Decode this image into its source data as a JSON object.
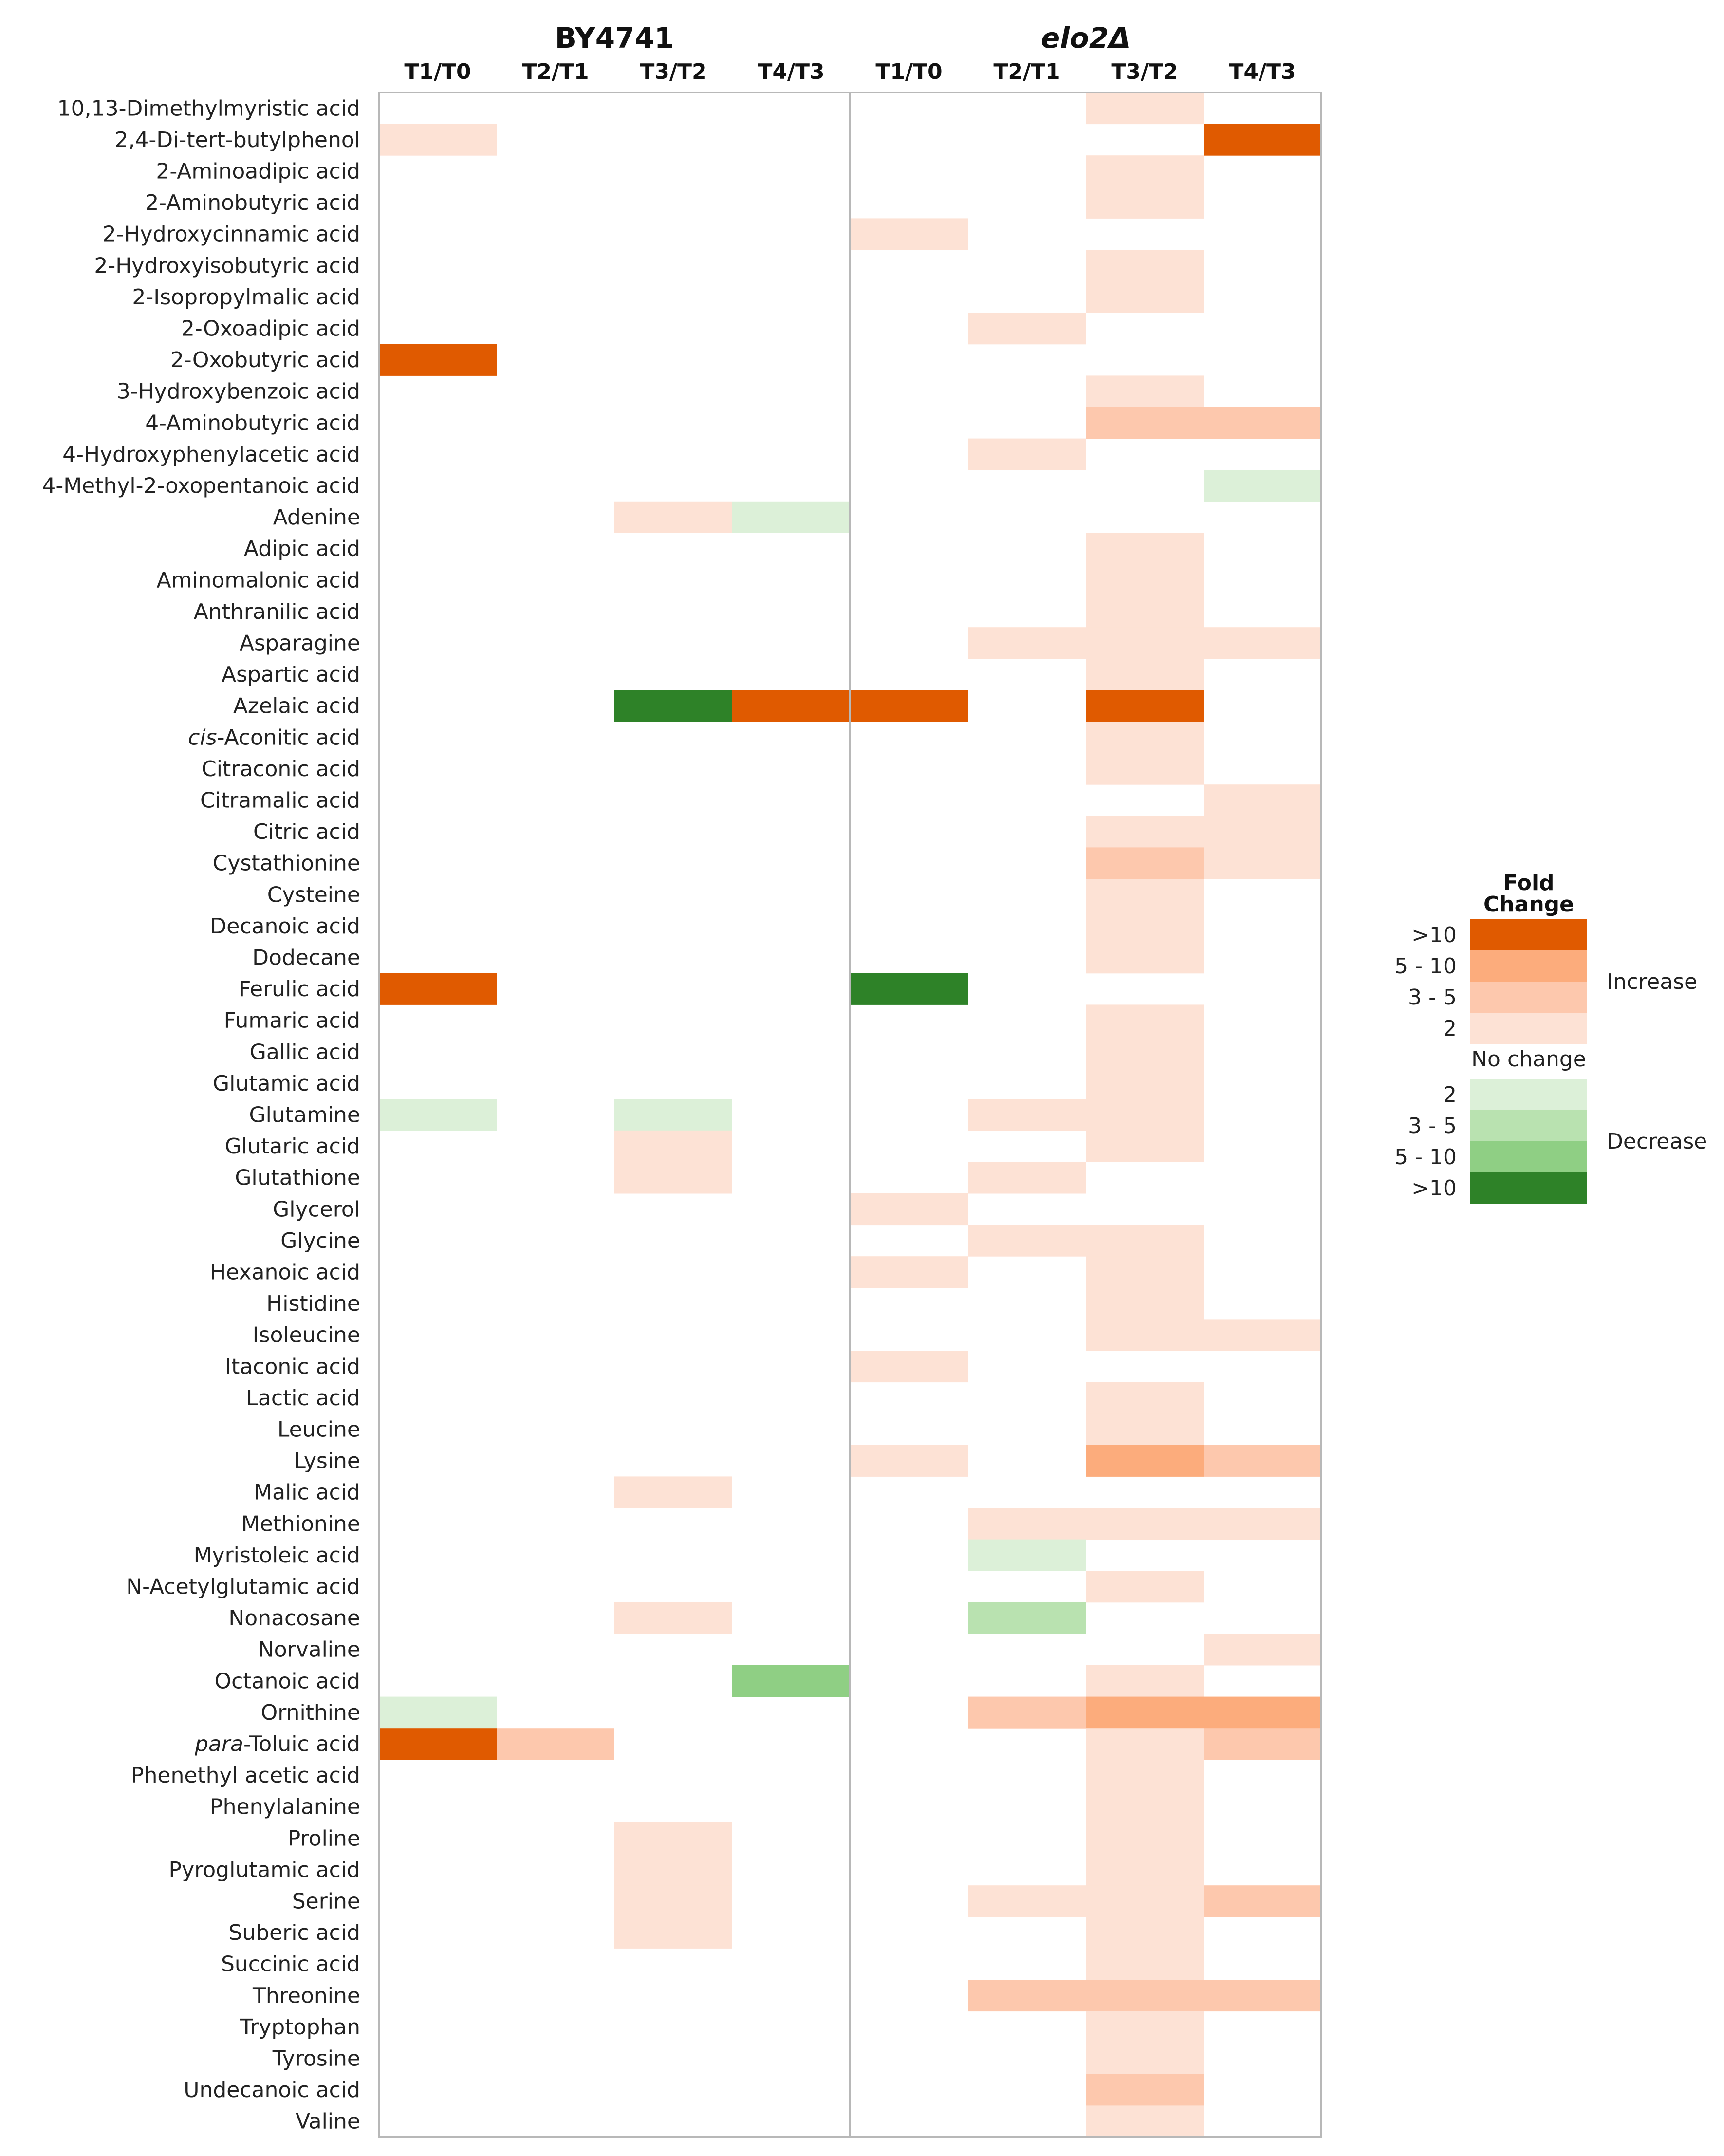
{
  "chart_data": {
    "type": "heatmap",
    "groups": [
      {
        "name": "BY4741",
        "italic": false
      },
      {
        "name": "elo2Δ",
        "italic": true
      }
    ],
    "columns": [
      "T1/T0",
      "T2/T1",
      "T3/T2",
      "T4/T3",
      "T1/T0",
      "T2/T1",
      "T3/T2",
      "T4/T3"
    ],
    "rows": [
      {
        "label": "10,13-Dimethylmyristic acid",
        "values": [
          0,
          0,
          0,
          0,
          0,
          0,
          1,
          0
        ]
      },
      {
        "label": "2,4-Di-tert-butylphenol",
        "values": [
          1,
          0,
          0,
          0,
          0,
          0,
          0,
          4
        ]
      },
      {
        "label": "2-Aminoadipic acid",
        "values": [
          0,
          0,
          0,
          0,
          0,
          0,
          1,
          0
        ]
      },
      {
        "label": "2-Aminobutyric acid",
        "values": [
          0,
          0,
          0,
          0,
          0,
          0,
          1,
          0
        ]
      },
      {
        "label": "2-Hydroxycinnamic acid",
        "values": [
          0,
          0,
          0,
          0,
          1,
          0,
          0,
          0
        ]
      },
      {
        "label": "2-Hydroxyisobutyric acid",
        "values": [
          0,
          0,
          0,
          0,
          0,
          0,
          1,
          0
        ]
      },
      {
        "label": "2-Isopropylmalic acid",
        "values": [
          0,
          0,
          0,
          0,
          0,
          0,
          1,
          0
        ]
      },
      {
        "label": "2-Oxoadipic acid",
        "values": [
          0,
          0,
          0,
          0,
          0,
          1,
          0,
          0
        ]
      },
      {
        "label": "2-Oxobutyric acid",
        "values": [
          4,
          0,
          0,
          0,
          0,
          0,
          0,
          0
        ]
      },
      {
        "label": "3-Hydroxybenzoic acid",
        "values": [
          0,
          0,
          0,
          0,
          0,
          0,
          1,
          0
        ]
      },
      {
        "label": "4-Aminobutyric acid",
        "values": [
          0,
          0,
          0,
          0,
          0,
          0,
          2,
          2
        ]
      },
      {
        "label": "4-Hydroxyphenylacetic acid",
        "values": [
          0,
          0,
          0,
          0,
          0,
          1,
          0,
          0
        ]
      },
      {
        "label": "4-Methyl-2-oxopentanoic acid",
        "values": [
          0,
          0,
          0,
          0,
          0,
          0,
          0,
          -1
        ]
      },
      {
        "label": "Adenine",
        "values": [
          0,
          0,
          1,
          -1,
          0,
          0,
          0,
          0
        ]
      },
      {
        "label": "Adipic acid",
        "values": [
          0,
          0,
          0,
          0,
          0,
          0,
          1,
          0
        ]
      },
      {
        "label": "Aminomalonic acid",
        "values": [
          0,
          0,
          0,
          0,
          0,
          0,
          1,
          0
        ]
      },
      {
        "label": "Anthranilic acid",
        "values": [
          0,
          0,
          0,
          0,
          0,
          0,
          1,
          0
        ]
      },
      {
        "label": "Asparagine",
        "values": [
          0,
          0,
          0,
          0,
          0,
          1,
          1,
          1
        ]
      },
      {
        "label": "Aspartic acid",
        "values": [
          0,
          0,
          0,
          0,
          0,
          0,
          1,
          0
        ]
      },
      {
        "label": "Azelaic acid",
        "values": [
          0,
          0,
          -4,
          4,
          4,
          0,
          4,
          0
        ]
      },
      {
        "label": "cis-Aconitic acid",
        "italic_prefix": "cis",
        "values": [
          0,
          0,
          0,
          0,
          0,
          0,
          1,
          0
        ]
      },
      {
        "label": "Citraconic acid",
        "values": [
          0,
          0,
          0,
          0,
          0,
          0,
          1,
          0
        ]
      },
      {
        "label": "Citramalic acid",
        "values": [
          0,
          0,
          0,
          0,
          0,
          0,
          0,
          1
        ]
      },
      {
        "label": "Citric acid",
        "values": [
          0,
          0,
          0,
          0,
          0,
          0,
          1,
          1
        ]
      },
      {
        "label": "Cystathionine",
        "values": [
          0,
          0,
          0,
          0,
          0,
          0,
          2,
          1
        ]
      },
      {
        "label": "Cysteine",
        "values": [
          0,
          0,
          0,
          0,
          0,
          0,
          1,
          0
        ]
      },
      {
        "label": "Decanoic acid",
        "values": [
          0,
          0,
          0,
          0,
          0,
          0,
          1,
          0
        ]
      },
      {
        "label": "Dodecane",
        "values": [
          0,
          0,
          0,
          0,
          0,
          0,
          1,
          0
        ]
      },
      {
        "label": "Ferulic acid",
        "values": [
          4,
          0,
          0,
          0,
          -4,
          0,
          0,
          0
        ]
      },
      {
        "label": "Fumaric acid",
        "values": [
          0,
          0,
          0,
          0,
          0,
          0,
          1,
          0
        ]
      },
      {
        "label": "Gallic acid",
        "values": [
          0,
          0,
          0,
          0,
          0,
          0,
          1,
          0
        ]
      },
      {
        "label": "Glutamic acid",
        "values": [
          0,
          0,
          0,
          0,
          0,
          0,
          1,
          0
        ]
      },
      {
        "label": "Glutamine",
        "values": [
          -1,
          0,
          -1,
          0,
          0,
          1,
          1,
          0
        ]
      },
      {
        "label": "Glutaric acid",
        "values": [
          0,
          0,
          1,
          0,
          0,
          0,
          1,
          0
        ]
      },
      {
        "label": "Glutathione",
        "values": [
          0,
          0,
          1,
          0,
          0,
          1,
          0,
          0
        ]
      },
      {
        "label": "Glycerol",
        "values": [
          0,
          0,
          0,
          0,
          1,
          0,
          0,
          0
        ]
      },
      {
        "label": "Glycine",
        "values": [
          0,
          0,
          0,
          0,
          0,
          1,
          1,
          0
        ]
      },
      {
        "label": "Hexanoic acid",
        "values": [
          0,
          0,
          0,
          0,
          1,
          0,
          1,
          0
        ]
      },
      {
        "label": "Histidine",
        "values": [
          0,
          0,
          0,
          0,
          0,
          0,
          1,
          0
        ]
      },
      {
        "label": "Isoleucine",
        "values": [
          0,
          0,
          0,
          0,
          0,
          0,
          1,
          1
        ]
      },
      {
        "label": "Itaconic acid",
        "values": [
          0,
          0,
          0,
          0,
          1,
          0,
          0,
          0
        ]
      },
      {
        "label": "Lactic acid",
        "values": [
          0,
          0,
          0,
          0,
          0,
          0,
          1,
          0
        ]
      },
      {
        "label": "Leucine",
        "values": [
          0,
          0,
          0,
          0,
          0,
          0,
          1,
          0
        ]
      },
      {
        "label": "Lysine",
        "values": [
          0,
          0,
          0,
          0,
          1,
          0,
          3,
          2
        ]
      },
      {
        "label": "Malic acid",
        "values": [
          0,
          0,
          1,
          0,
          0,
          0,
          0,
          0
        ]
      },
      {
        "label": "Methionine",
        "values": [
          0,
          0,
          0,
          0,
          0,
          1,
          1,
          1
        ]
      },
      {
        "label": "Myristoleic acid",
        "values": [
          0,
          0,
          0,
          0,
          0,
          -1,
          0,
          0
        ]
      },
      {
        "label": "N-Acetylglutamic acid",
        "values": [
          0,
          0,
          0,
          0,
          0,
          0,
          1,
          0
        ]
      },
      {
        "label": "Nonacosane",
        "values": [
          0,
          0,
          1,
          0,
          0,
          -2,
          0,
          0
        ]
      },
      {
        "label": "Norvaline",
        "values": [
          0,
          0,
          0,
          0,
          0,
          0,
          0,
          1
        ]
      },
      {
        "label": "Octanoic acid",
        "values": [
          0,
          0,
          0,
          -3,
          0,
          0,
          1,
          0
        ]
      },
      {
        "label": "Ornithine",
        "values": [
          -1,
          0,
          0,
          0,
          0,
          2,
          3,
          3
        ]
      },
      {
        "label": "para-Toluic acid",
        "italic_prefix": "para",
        "values": [
          4,
          2,
          0,
          0,
          0,
          0,
          1,
          2
        ]
      },
      {
        "label": "Phenethyl acetic acid",
        "values": [
          0,
          0,
          0,
          0,
          0,
          0,
          1,
          0
        ]
      },
      {
        "label": "Phenylalanine",
        "values": [
          0,
          0,
          0,
          0,
          0,
          0,
          1,
          0
        ]
      },
      {
        "label": "Proline",
        "values": [
          0,
          0,
          1,
          0,
          0,
          0,
          1,
          0
        ]
      },
      {
        "label": "Pyroglutamic acid",
        "values": [
          0,
          0,
          1,
          0,
          0,
          0,
          1,
          0
        ]
      },
      {
        "label": "Serine",
        "values": [
          0,
          0,
          1,
          0,
          0,
          1,
          1,
          2
        ]
      },
      {
        "label": "Suberic acid",
        "values": [
          0,
          0,
          1,
          0,
          0,
          0,
          1,
          0
        ]
      },
      {
        "label": "Succinic acid",
        "values": [
          0,
          0,
          0,
          0,
          0,
          0,
          1,
          0
        ]
      },
      {
        "label": "Threonine",
        "values": [
          0,
          0,
          0,
          0,
          0,
          2,
          2,
          2
        ]
      },
      {
        "label": "Tryptophan",
        "values": [
          0,
          0,
          0,
          0,
          0,
          0,
          1,
          0
        ]
      },
      {
        "label": "Tyrosine",
        "values": [
          0,
          0,
          0,
          0,
          0,
          0,
          1,
          0
        ]
      },
      {
        "label": "Undecanoic acid",
        "values": [
          0,
          0,
          0,
          0,
          0,
          0,
          2,
          0
        ]
      },
      {
        "label": "Valine",
        "values": [
          0,
          0,
          0,
          0,
          0,
          0,
          1,
          0
        ]
      }
    ],
    "legend": {
      "title": "Fold Change",
      "increase_label": "Increase",
      "decrease_label": "Decrease",
      "no_change_label": "No change",
      "increase_levels": [
        {
          "label": ">10",
          "level": 4
        },
        {
          "label": "5 - 10",
          "level": 3
        },
        {
          "label": "3 - 5",
          "level": 2
        },
        {
          "label": "2",
          "level": 1
        }
      ],
      "decrease_levels": [
        {
          "label": "2",
          "level": -1
        },
        {
          "label": "3 - 5",
          "level": -2
        },
        {
          "label": "5 - 10",
          "level": -3
        },
        {
          "label": ">10",
          "level": -4
        }
      ]
    },
    "colors": {
      "4": "#e05a00",
      "3": "#fcac7c",
      "2": "#fdc8ad",
      "1": "#fde2d5",
      "0": "#ffffff",
      "-1": "#dcf0d8",
      "-2": "#b9e2b0",
      "-3": "#8fcf84",
      "-4": "#2e8228"
    }
  }
}
